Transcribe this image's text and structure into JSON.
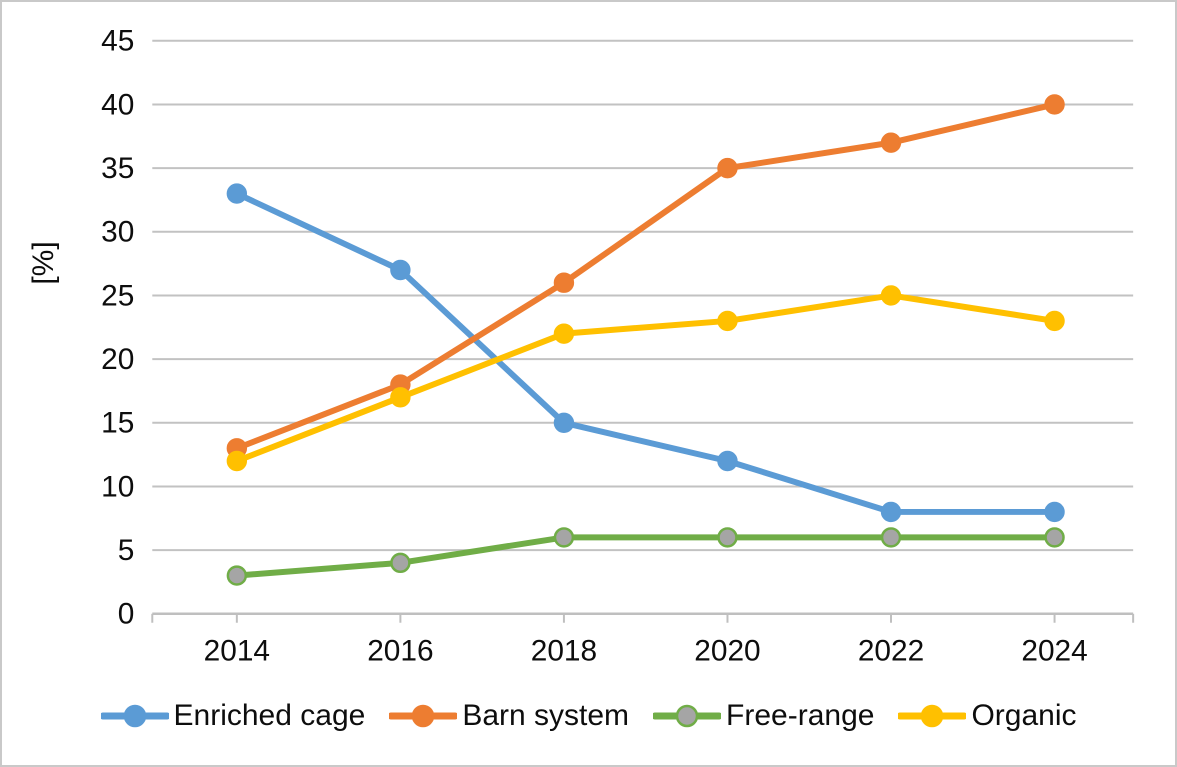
{
  "chart_data": {
    "type": "line",
    "title": "",
    "xlabel": "",
    "ylabel": "[%]",
    "categories": [
      "2014",
      "2016",
      "2018",
      "2020",
      "2022",
      "2024"
    ],
    "series": [
      {
        "name": "Enriched cage",
        "values": [
          33,
          27,
          15,
          12,
          8,
          8
        ],
        "color": "#5B9BD5",
        "marker_fill": "#5B9BD5",
        "marker_stroke": "#5B9BD5"
      },
      {
        "name": "Barn system",
        "values": [
          13,
          18,
          26,
          35,
          37,
          40
        ],
        "color": "#ED7D31",
        "marker_fill": "#ED7D31",
        "marker_stroke": "#ED7D31"
      },
      {
        "name": "Free-range",
        "values": [
          3,
          4,
          6,
          6,
          6,
          6
        ],
        "color": "#70AD47",
        "marker_fill": "#A5A5A5",
        "marker_stroke": "#70AD47"
      },
      {
        "name": "Organic",
        "values": [
          12,
          17,
          22,
          23,
          25,
          23
        ],
        "color": "#FFC000",
        "marker_fill": "#FFC000",
        "marker_stroke": "#FFC000"
      }
    ],
    "ylim": [
      0,
      45
    ],
    "ytick_step": 5,
    "grid": "horizontal",
    "legend_position": "bottom"
  },
  "styles": {
    "grid_color": "#C2C2C2",
    "axis_color": "#BFBFBF",
    "text_color": "#0d0d0d",
    "frame_border": "#C9C9C9",
    "background": "#FFFFFF"
  }
}
